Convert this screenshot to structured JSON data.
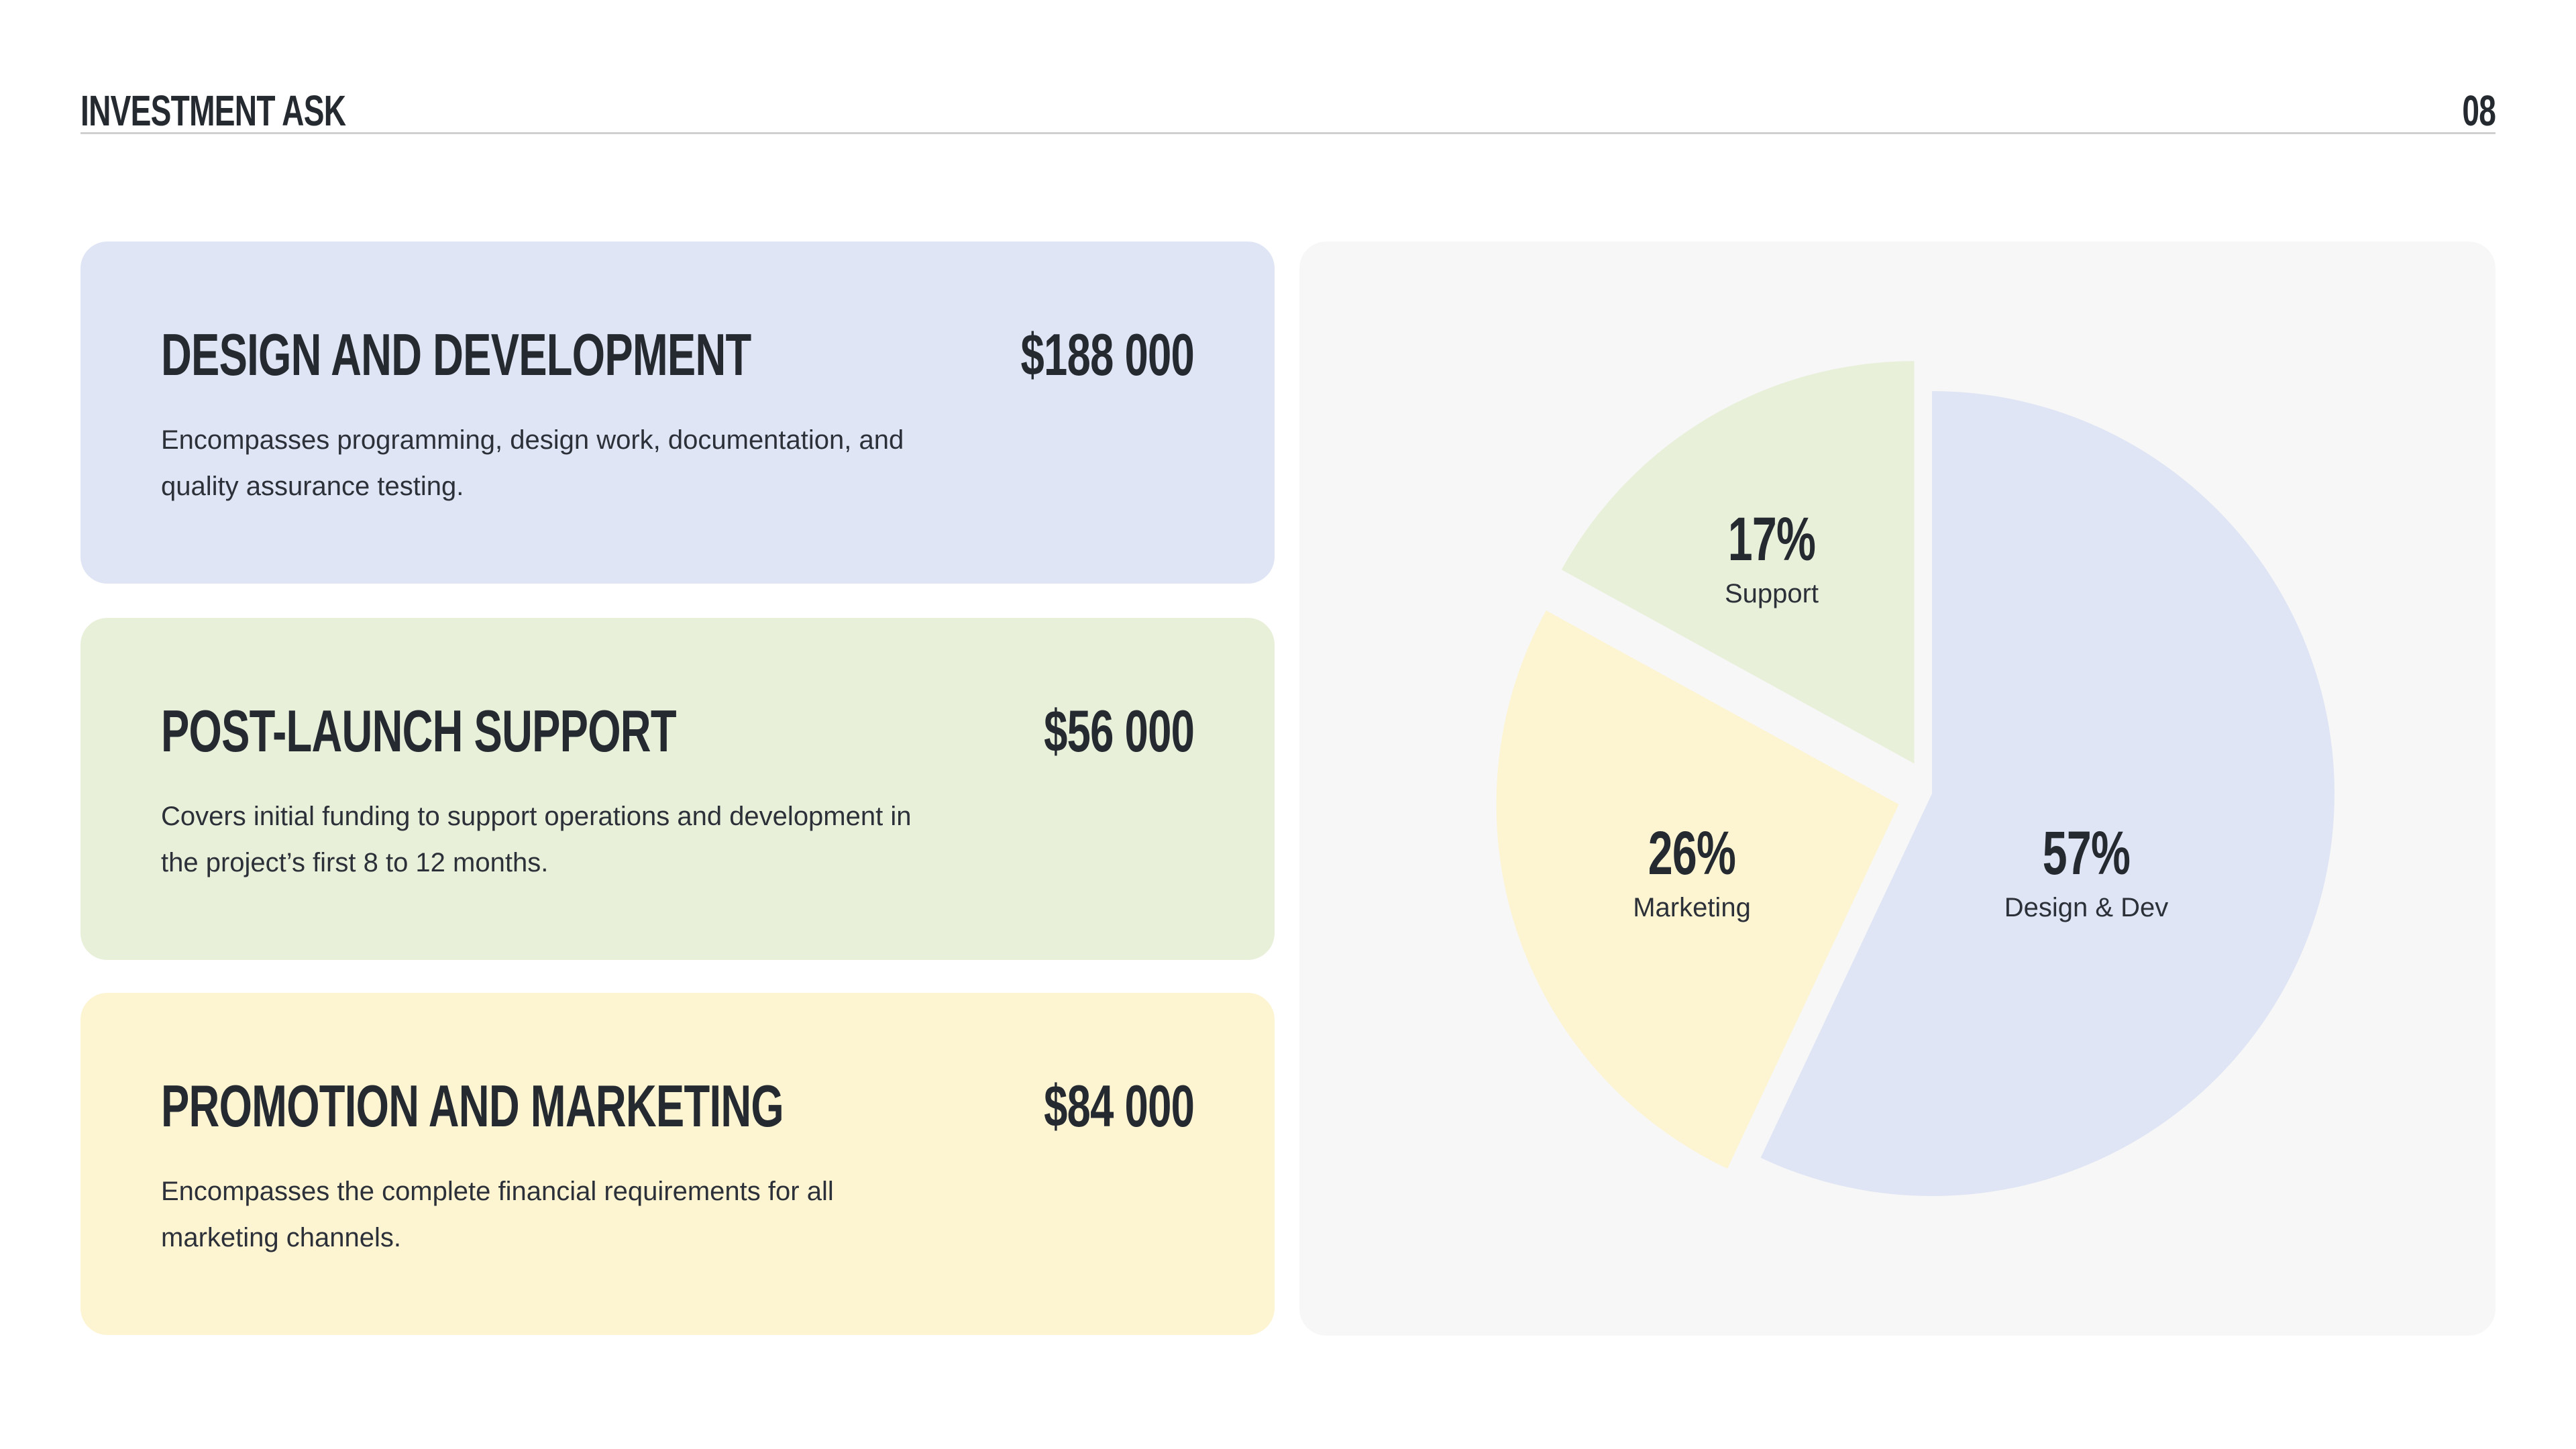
{
  "header": {
    "title": "INVESTMENT ASK",
    "page_number": "08"
  },
  "cards": [
    {
      "title": "DESIGN AND DEVELOPMENT",
      "amount": "$188 000",
      "description": "Encompasses programming, design work, documentation, and quality assurance testing.",
      "color": "#dfe5f4"
    },
    {
      "title": "POST-LAUNCH SUPPORT",
      "amount": "$56 000",
      "description": "Covers initial funding to support operations and development in the project’s first 8 to 12 months.",
      "color": "#e8f0da"
    },
    {
      "title": "PROMOTION AND MARKETING",
      "amount": "$84 000",
      "description": "Encompasses the complete financial requirements for all marketing channels.",
      "color": "#fdf4d2"
    }
  ],
  "chart_data": {
    "type": "pie",
    "title": "",
    "slices": [
      {
        "label": "Design & Dev",
        "value": 57,
        "display": "57%",
        "color": "#dfe5f4"
      },
      {
        "label": "Marketing",
        "value": 26,
        "display": "26%",
        "color": "#fdf4d2"
      },
      {
        "label": "Support",
        "value": 17,
        "display": "17%",
        "color": "#e8f0da"
      }
    ],
    "legend": "none"
  }
}
